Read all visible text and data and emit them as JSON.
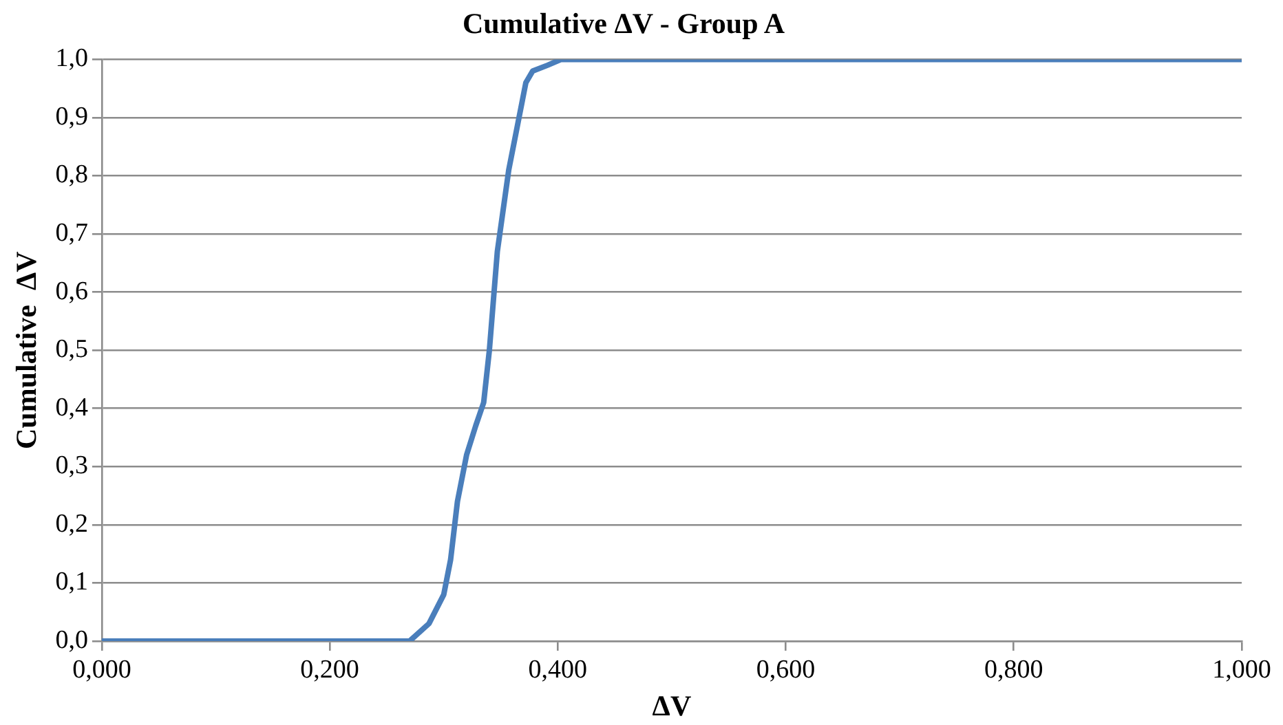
{
  "chart_data": {
    "type": "line",
    "title": "Cumulative ΔV - Group A",
    "xlabel": "ΔV",
    "ylabel": "Cumulative  ΔV",
    "series": [
      {
        "color": "#4a7ebb",
        "x": [
          0,
          0.1,
          0.2,
          0.27,
          0.287,
          0.3,
          0.306,
          0.312,
          0.32,
          0.328,
          0.335,
          0.34,
          0.347,
          0.357,
          0.366,
          0.372,
          0.378,
          0.391,
          0.403,
          0.5,
          0.7,
          1.0
        ],
        "values": [
          0,
          0,
          0,
          0,
          0.03,
          0.08,
          0.14,
          0.24,
          0.32,
          0.37,
          0.41,
          0.5,
          0.67,
          0.81,
          0.9,
          0.96,
          0.98,
          0.99,
          1.0,
          1.0,
          1.0,
          1.0
        ]
      }
    ],
    "xlim": [
      0,
      1
    ],
    "xticks": [
      {
        "value": 0,
        "label": "0,000"
      },
      {
        "value": 0.2,
        "label": "0,200"
      },
      {
        "value": 0.4,
        "label": "0,400"
      },
      {
        "value": 0.6,
        "label": "0,600"
      },
      {
        "value": 0.8,
        "label": "0,800"
      },
      {
        "value": 1,
        "label": "1,000"
      }
    ],
    "ylim": [
      0,
      1
    ],
    "yticks": [
      {
        "value": 0,
        "label": "0,0"
      },
      {
        "value": 0.1,
        "label": "0,1"
      },
      {
        "value": 0.2,
        "label": "0,2"
      },
      {
        "value": 0.3,
        "label": "0,3"
      },
      {
        "value": 0.4,
        "label": "0,4"
      },
      {
        "value": 0.5,
        "label": "0,5"
      },
      {
        "value": 0.6,
        "label": "0,6"
      },
      {
        "value": 0.7,
        "label": "0,7"
      },
      {
        "value": 0.8,
        "label": "0,8"
      },
      {
        "value": 0.9,
        "label": "0,9"
      },
      {
        "value": 1,
        "label": "1,0"
      }
    ],
    "grid": "y",
    "legend": false,
    "marker": "none",
    "line_style": "solid"
  }
}
